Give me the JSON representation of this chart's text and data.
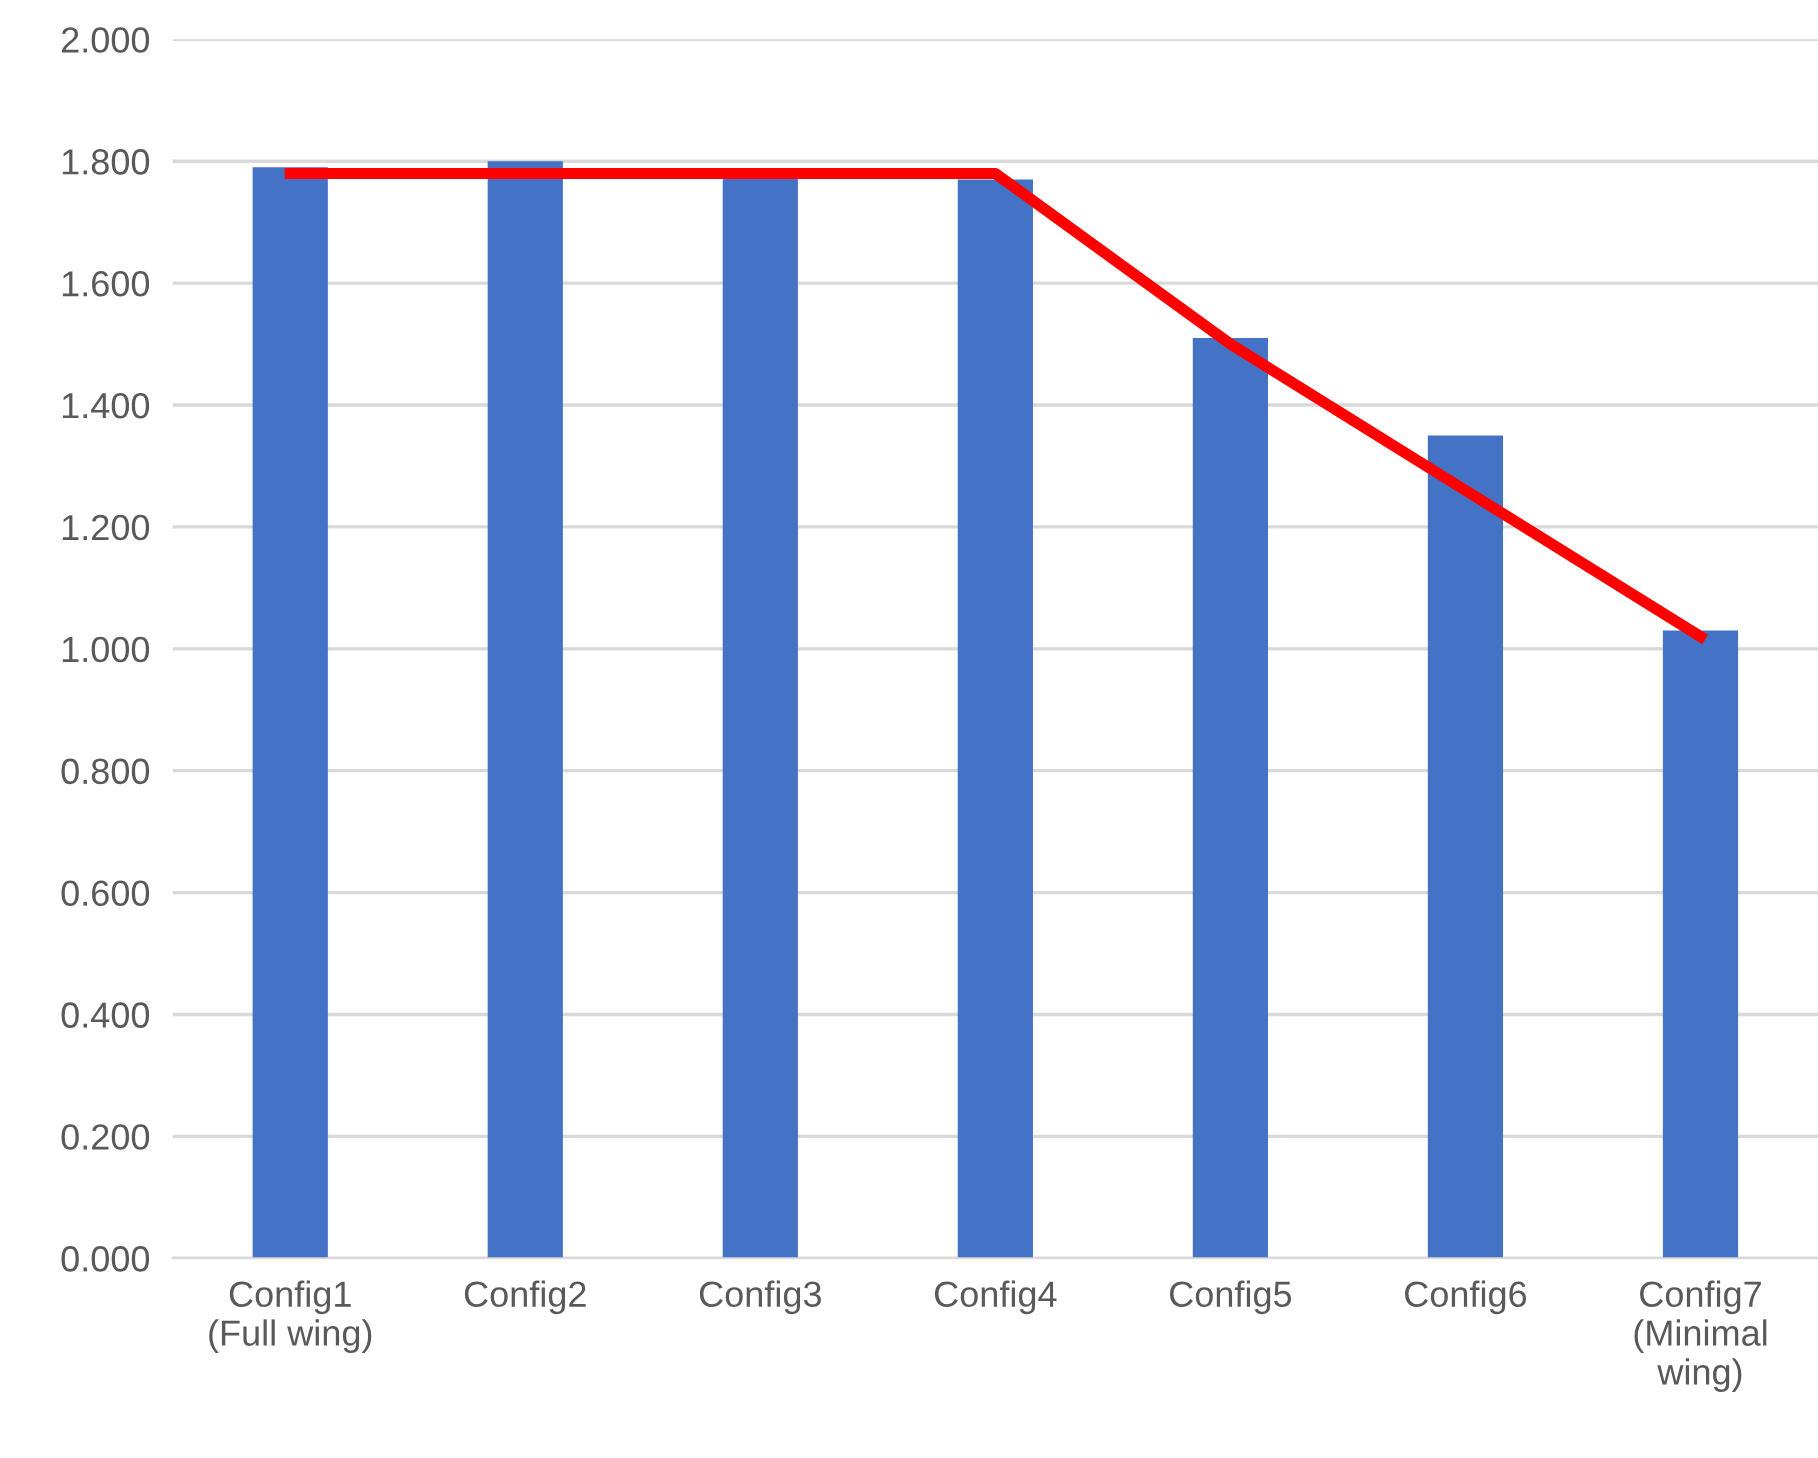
{
  "chart_data": {
    "type": "bar",
    "categories": [
      "Config1\n(Full wing)",
      "Config2",
      "Config3",
      "Config4",
      "Config5",
      "Config6",
      "Config7\n(Minimal\nwing)"
    ],
    "series": [
      {
        "color": "#4472c4",
        "values": [
          1.79,
          1.8,
          1.78,
          1.77,
          1.51,
          1.35,
          1.03
        ]
      },
      {
        "type": "line",
        "color": "#ff0000",
        "values": [
          1.78,
          1.78,
          1.78,
          1.78,
          1.5,
          1.26,
          1.02
        ]
      }
    ],
    "ylim": [
      0,
      2
    ],
    "yticks": [
      {
        "value": 0,
        "label": "0.000"
      },
      {
        "value": 0.2,
        "label": "0.200"
      },
      {
        "value": 0.4,
        "label": "0.400"
      },
      {
        "value": 0.6,
        "label": "0.600"
      },
      {
        "value": 0.8,
        "label": "0.800"
      },
      {
        "value": 1.0,
        "label": "1.000"
      },
      {
        "value": 1.2,
        "label": "1.200"
      },
      {
        "value": 1.4,
        "label": "1.400"
      },
      {
        "value": 1.6,
        "label": "1.600"
      },
      {
        "value": 1.8,
        "label": "1.800"
      },
      {
        "value": 2.0,
        "label": "2.000"
      }
    ],
    "grid": "y",
    "legend": false
  }
}
